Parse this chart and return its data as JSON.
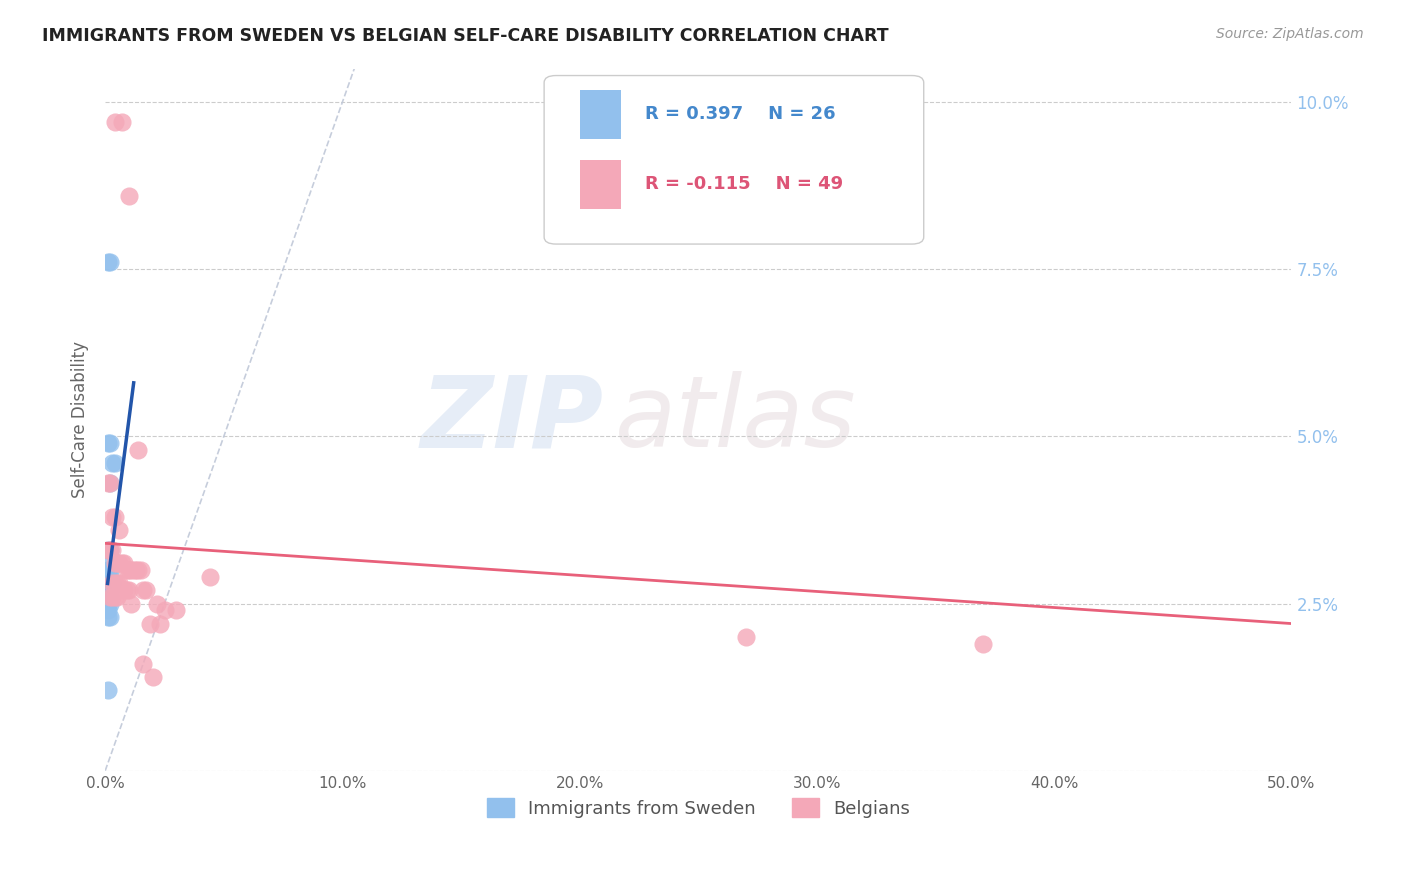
{
  "title": "IMMIGRANTS FROM SWEDEN VS BELGIAN SELF-CARE DISABILITY CORRELATION CHART",
  "source": "Source: ZipAtlas.com",
  "ylabel": "Self-Care Disability",
  "xlim": [
    0.0,
    0.5
  ],
  "ylim": [
    0.0,
    0.105
  ],
  "yticks": [
    0.0,
    0.025,
    0.05,
    0.075,
    0.1
  ],
  "ytick_labels": [
    "",
    "2.5%",
    "5.0%",
    "7.5%",
    "10.0%"
  ],
  "xticks": [
    0.0,
    0.1,
    0.2,
    0.3,
    0.4,
    0.5
  ],
  "xtick_labels": [
    "0.0%",
    "10.0%",
    "20.0%",
    "30.0%",
    "40.0%",
    "50.0%"
  ],
  "grid_color": "#cccccc",
  "background_color": "#ffffff",
  "blue_color": "#92c0ed",
  "pink_color": "#f4a8b8",
  "blue_line_color": "#2255aa",
  "pink_line_color": "#e8607a",
  "diagonal_color": "#c0c8d8",
  "legend_R_blue": "R = 0.397",
  "legend_N_blue": "N = 26",
  "legend_R_pink": "R = -0.115",
  "legend_N_pink": "N = 49",
  "legend_label_blue": "Immigrants from Sweden",
  "legend_label_pink": "Belgians",
  "watermark_zip": "ZIP",
  "watermark_atlas": "atlas",
  "blue_line_x": [
    0.001,
    0.012
  ],
  "blue_line_y": [
    0.028,
    0.058
  ],
  "pink_line_x": [
    0.0,
    0.5
  ],
  "pink_line_y": [
    0.034,
    0.022
  ],
  "diag_line_x": [
    0.0,
    0.105
  ],
  "diag_line_y": [
    0.0,
    0.105
  ],
  "blue_dots": [
    [
      0.001,
      0.076
    ],
    [
      0.002,
      0.076
    ],
    [
      0.001,
      0.049
    ],
    [
      0.002,
      0.049
    ],
    [
      0.003,
      0.046
    ],
    [
      0.004,
      0.046
    ],
    [
      0.002,
      0.043
    ],
    [
      0.001,
      0.033
    ],
    [
      0.002,
      0.033
    ],
    [
      0.001,
      0.031
    ],
    [
      0.001,
      0.03
    ],
    [
      0.002,
      0.03
    ],
    [
      0.001,
      0.029
    ],
    [
      0.002,
      0.029
    ],
    [
      0.002,
      0.028
    ],
    [
      0.003,
      0.028
    ],
    [
      0.001,
      0.027
    ],
    [
      0.002,
      0.027
    ],
    [
      0.001,
      0.026
    ],
    [
      0.002,
      0.026
    ],
    [
      0.001,
      0.025
    ],
    [
      0.002,
      0.025
    ],
    [
      0.001,
      0.024
    ],
    [
      0.001,
      0.023
    ],
    [
      0.002,
      0.023
    ],
    [
      0.001,
      0.012
    ]
  ],
  "pink_dots": [
    [
      0.004,
      0.097
    ],
    [
      0.007,
      0.097
    ],
    [
      0.01,
      0.086
    ],
    [
      0.014,
      0.048
    ],
    [
      0.001,
      0.043
    ],
    [
      0.002,
      0.043
    ],
    [
      0.003,
      0.038
    ],
    [
      0.004,
      0.038
    ],
    [
      0.006,
      0.036
    ],
    [
      0.001,
      0.033
    ],
    [
      0.002,
      0.033
    ],
    [
      0.003,
      0.033
    ],
    [
      0.004,
      0.031
    ],
    [
      0.005,
      0.031
    ],
    [
      0.006,
      0.031
    ],
    [
      0.007,
      0.031
    ],
    [
      0.008,
      0.031
    ],
    [
      0.009,
      0.03
    ],
    [
      0.01,
      0.03
    ],
    [
      0.011,
      0.03
    ],
    [
      0.012,
      0.03
    ],
    [
      0.013,
      0.03
    ],
    [
      0.014,
      0.03
    ],
    [
      0.015,
      0.03
    ],
    [
      0.003,
      0.028
    ],
    [
      0.004,
      0.028
    ],
    [
      0.005,
      0.028
    ],
    [
      0.006,
      0.028
    ],
    [
      0.007,
      0.027
    ],
    [
      0.008,
      0.027
    ],
    [
      0.009,
      0.027
    ],
    [
      0.01,
      0.027
    ],
    [
      0.016,
      0.027
    ],
    [
      0.017,
      0.027
    ],
    [
      0.002,
      0.026
    ],
    [
      0.003,
      0.026
    ],
    [
      0.004,
      0.026
    ],
    [
      0.005,
      0.026
    ],
    [
      0.011,
      0.025
    ],
    [
      0.022,
      0.025
    ],
    [
      0.025,
      0.024
    ],
    [
      0.03,
      0.024
    ],
    [
      0.019,
      0.022
    ],
    [
      0.023,
      0.022
    ],
    [
      0.044,
      0.029
    ],
    [
      0.27,
      0.02
    ],
    [
      0.37,
      0.019
    ],
    [
      0.016,
      0.016
    ],
    [
      0.02,
      0.014
    ]
  ]
}
